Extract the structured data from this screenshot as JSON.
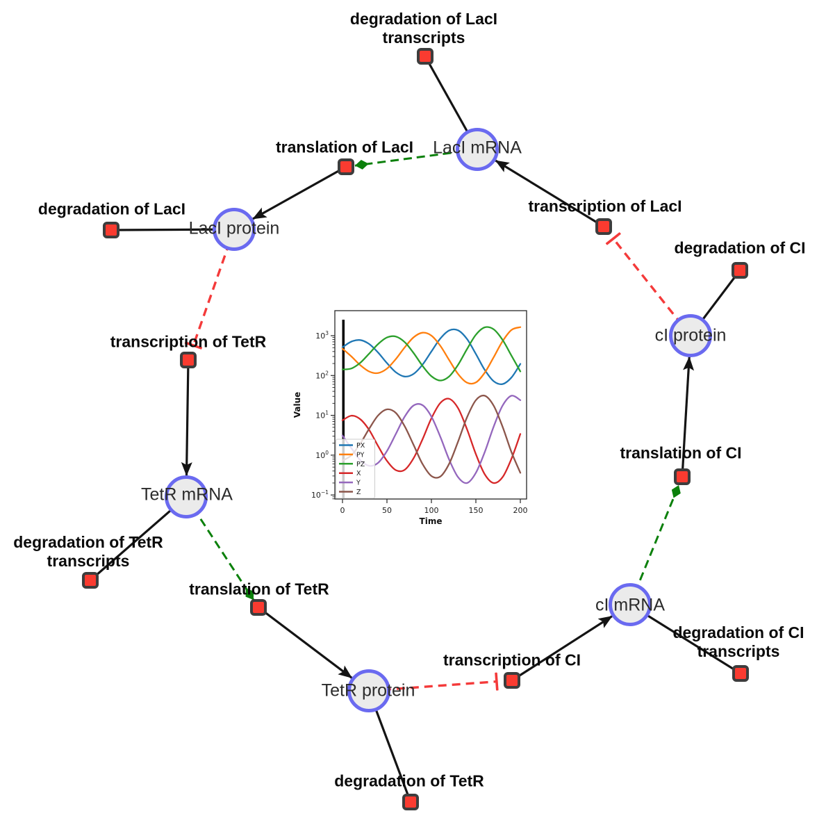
{
  "diagram": {
    "species": {
      "laci_mrna": {
        "label": "LacI mRNA"
      },
      "laci_protein": {
        "label": "LacI protein"
      },
      "tetr_mrna": {
        "label": "TetR mRNA"
      },
      "tetr_protein": {
        "label": "TetR protein"
      },
      "ci_mrna": {
        "label": "cI mRNA"
      },
      "ci_protein": {
        "label": "cI protein"
      }
    },
    "reactions": {
      "deg_laci_transcripts": {
        "lines": [
          "degradation of LacI",
          "transcripts"
        ]
      },
      "transl_laci": {
        "lines": [
          "translation of LacI"
        ]
      },
      "deg_laci": {
        "lines": [
          "degradation of LacI"
        ]
      },
      "transcr_tetr": {
        "lines": [
          "transcription of TetR"
        ]
      },
      "deg_tetr_transcripts": {
        "lines": [
          "degradation of TetR",
          "transcripts"
        ]
      },
      "transl_tetr": {
        "lines": [
          "translation of TetR"
        ]
      },
      "deg_tetr": {
        "lines": [
          "degradation of TetR"
        ]
      },
      "transcr_ci": {
        "lines": [
          "transcription of CI"
        ]
      },
      "deg_ci_transcripts": {
        "lines": [
          "degradation of CI",
          "transcripts"
        ]
      },
      "transl_ci": {
        "lines": [
          "translation of CI"
        ]
      },
      "deg_ci": {
        "lines": [
          "degradation of CI"
        ]
      },
      "transcr_laci": {
        "lines": [
          "transcription of LacI"
        ]
      }
    },
    "colors": {
      "species_fill": "#ebebeb",
      "species_border": "#6a6af0",
      "reaction_fill": "#fa3b30",
      "reaction_border": "#3d3d3d",
      "edge_black": "#141414",
      "edge_modifier_green": "#0b800b",
      "edge_inhibition_red": "#f43a3a",
      "background": "#ffffff"
    }
  },
  "chart_data": {
    "type": "line",
    "title": "",
    "xlabel": "Time",
    "ylabel": "Value",
    "x_ticks": [
      0,
      50,
      100,
      150,
      200
    ],
    "y_scale": "log",
    "y_tick_exponents": [
      3,
      2,
      1,
      0,
      -1
    ],
    "xlim": [
      -9,
      207
    ],
    "ylim_log10": [
      -1.1,
      3.63
    ],
    "grid": false,
    "legend_position": "lower left",
    "initial_transient_line_x": 1,
    "x": [
      0,
      10,
      20,
      30,
      40,
      50,
      60,
      70,
      80,
      90,
      100,
      110,
      120,
      130,
      140,
      150,
      160,
      170,
      180,
      190,
      200
    ],
    "series": [
      {
        "name": "PX",
        "color": "#1f77b4",
        "values": [
          512,
          712,
          775,
          619,
          378,
          205,
          121,
          94,
          110,
          187,
          402,
          849,
          1355,
          1363,
          828,
          348,
          138,
          72,
          61,
          89,
          196
        ]
      },
      {
        "name": "PY",
        "color": "#ff7f0e",
        "values": [
          473,
          301,
          182,
          126,
          115,
          149,
          259,
          509,
          912,
          1189,
          1005,
          558,
          244,
          109,
          66,
          67,
          118,
          287,
          724,
          1393,
          1641
        ]
      },
      {
        "name": "PZ",
        "color": "#2ca02c",
        "values": [
          142,
          150,
          209,
          355,
          615,
          902,
          953,
          689,
          366,
          175,
          96,
          75,
          95,
          186,
          458,
          1055,
          1618,
          1449,
          786,
          316,
          127
        ]
      },
      {
        "name": "X",
        "color": "#d62728",
        "values": [
          7.5,
          9.8,
          8.0,
          4.3,
          1.7,
          0.72,
          0.42,
          0.43,
          0.84,
          2.5,
          8.4,
          20.4,
          26,
          15.1,
          4.5,
          1.06,
          0.33,
          0.2,
          0.28,
          0.81,
          3.4
        ]
      },
      {
        "name": "Y",
        "color": "#9467bd",
        "values": [
          3.1,
          1.5,
          0.75,
          0.54,
          0.64,
          1.27,
          3.4,
          9.3,
          17.7,
          18,
          9.3,
          2.9,
          0.77,
          0.28,
          0.2,
          0.36,
          1.2,
          5.2,
          17.5,
          31,
          24
        ]
      },
      {
        "name": "Z",
        "color": "#8c564b",
        "values": [
          0.73,
          0.99,
          1.95,
          4.6,
          9.9,
          14.1,
          11.5,
          5.3,
          1.8,
          0.6,
          0.3,
          0.29,
          0.61,
          2.2,
          8.9,
          24,
          31,
          17.5,
          5.2,
          1.2,
          0.36
        ]
      }
    ]
  }
}
